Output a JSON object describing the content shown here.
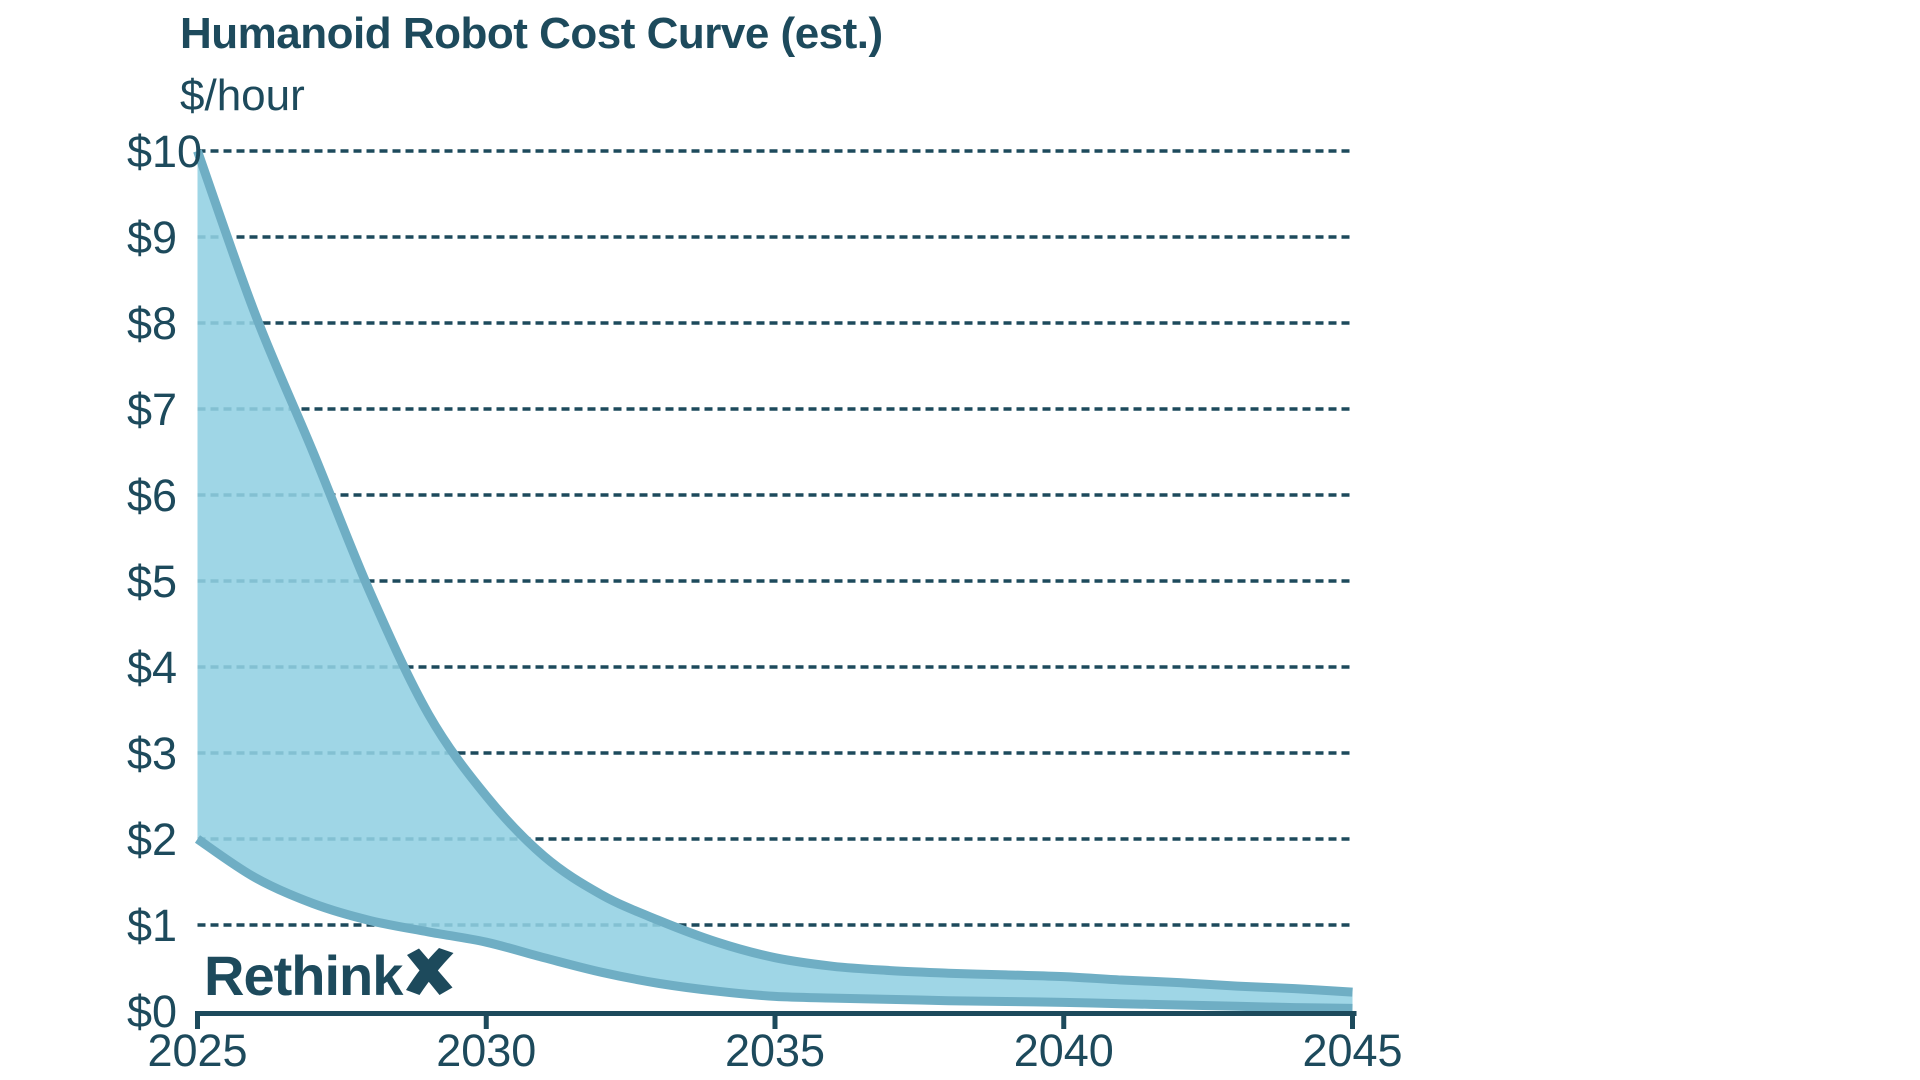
{
  "header": {
    "title": "Humanoid Robot Cost Curve (est.)",
    "ylabel": "$/hour"
  },
  "logo": {
    "text": "Rethink",
    "x_glyph": "X"
  },
  "colors": {
    "text_dark": "#1D4A5C",
    "gridline": "#1D4A5C",
    "axis": "#1D4A5C",
    "band_fill": "#92D0E3",
    "band_stroke": "#6FAEC4"
  },
  "chart_data": {
    "type": "area",
    "title": "Humanoid Robot Cost Curve (est.)",
    "ylabel": "$/hour",
    "xlabel": "",
    "x": [
      2025,
      2026,
      2027,
      2028,
      2029,
      2030,
      2031,
      2032,
      2033,
      2034,
      2035,
      2036,
      2037,
      2038,
      2039,
      2040,
      2041,
      2042,
      2043,
      2044,
      2045
    ],
    "series": [
      {
        "name": "upper_estimate",
        "values": [
          10.0,
          8.1,
          6.5,
          4.85,
          3.45,
          2.5,
          1.8,
          1.35,
          1.05,
          0.8,
          0.62,
          0.52,
          0.47,
          0.44,
          0.42,
          0.4,
          0.36,
          0.33,
          0.29,
          0.26,
          0.22
        ]
      },
      {
        "name": "lower_estimate",
        "values": [
          2.0,
          1.55,
          1.25,
          1.05,
          0.92,
          0.8,
          0.62,
          0.45,
          0.32,
          0.23,
          0.17,
          0.15,
          0.135,
          0.12,
          0.11,
          0.1,
          0.085,
          0.07,
          0.055,
          0.04,
          0.03
        ]
      }
    ],
    "band_between_series": true,
    "xlim": [
      2025,
      2045
    ],
    "ylim": [
      0,
      10
    ],
    "yticks": {
      "values": [
        0,
        1,
        2,
        3,
        4,
        5,
        6,
        7,
        8,
        9,
        10
      ],
      "labels": [
        "$0",
        "$1",
        "$2",
        "$3",
        "$4",
        "$5",
        "$6",
        "$7",
        "$8",
        "$9",
        "$10"
      ]
    },
    "xticks": {
      "values": [
        2025,
        2030,
        2035,
        2040,
        2045
      ],
      "labels": [
        "2025",
        "2030",
        "2035",
        "2040",
        "2045"
      ]
    },
    "grid": {
      "horizontal": true,
      "style": "dashed"
    },
    "legend": "none"
  }
}
